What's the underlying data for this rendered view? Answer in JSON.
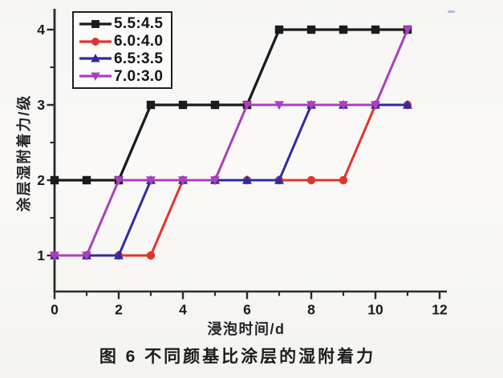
{
  "figure": {
    "caption": "图 6 不同颜基比涂层的湿附着力"
  },
  "chart_data": {
    "type": "line",
    "title": "",
    "xlabel": "浸泡时间/d",
    "ylabel": "涂层湿附着力/级",
    "x": [
      0,
      1,
      2,
      3,
      4,
      5,
      6,
      7,
      8,
      9,
      10,
      11
    ],
    "xlim": [
      0,
      12.2
    ],
    "ylim": [
      0.52,
      4.27
    ],
    "x_major_ticks": [
      0,
      2,
      4,
      6,
      8,
      10,
      12
    ],
    "x_minor_ticks": [
      1,
      3,
      5,
      7,
      9,
      11
    ],
    "y_major_ticks": [
      1,
      2,
      3,
      4
    ],
    "y_minor_ticks": [
      1.5,
      2.5,
      3.5
    ],
    "grid": false,
    "legend_position": "top-left",
    "axis_color": "#2b2b2b",
    "text_color": "#1a1a1a",
    "series": [
      {
        "name": "5.5:4.5",
        "color": "#1b1b1b",
        "marker": "square",
        "values": [
          2,
          2,
          2,
          3,
          3,
          3,
          3,
          4,
          4,
          4,
          4,
          4
        ]
      },
      {
        "name": "6.0:4.0",
        "color": "#de352c",
        "marker": "circle",
        "values": [
          1,
          1,
          1,
          1,
          2,
          2,
          2,
          2,
          2,
          2,
          3,
          3
        ]
      },
      {
        "name": "6.5:3.5",
        "color": "#312ba0",
        "marker": "triangle-up",
        "values": [
          1,
          1,
          1,
          2,
          2,
          2,
          2,
          2,
          3,
          3,
          3,
          3
        ]
      },
      {
        "name": "7.0:3.0",
        "color": "#a940bc",
        "marker": "triangle-down",
        "values": [
          1,
          1,
          2,
          2,
          2,
          2,
          3,
          3,
          3,
          3,
          3,
          4
        ]
      }
    ]
  }
}
